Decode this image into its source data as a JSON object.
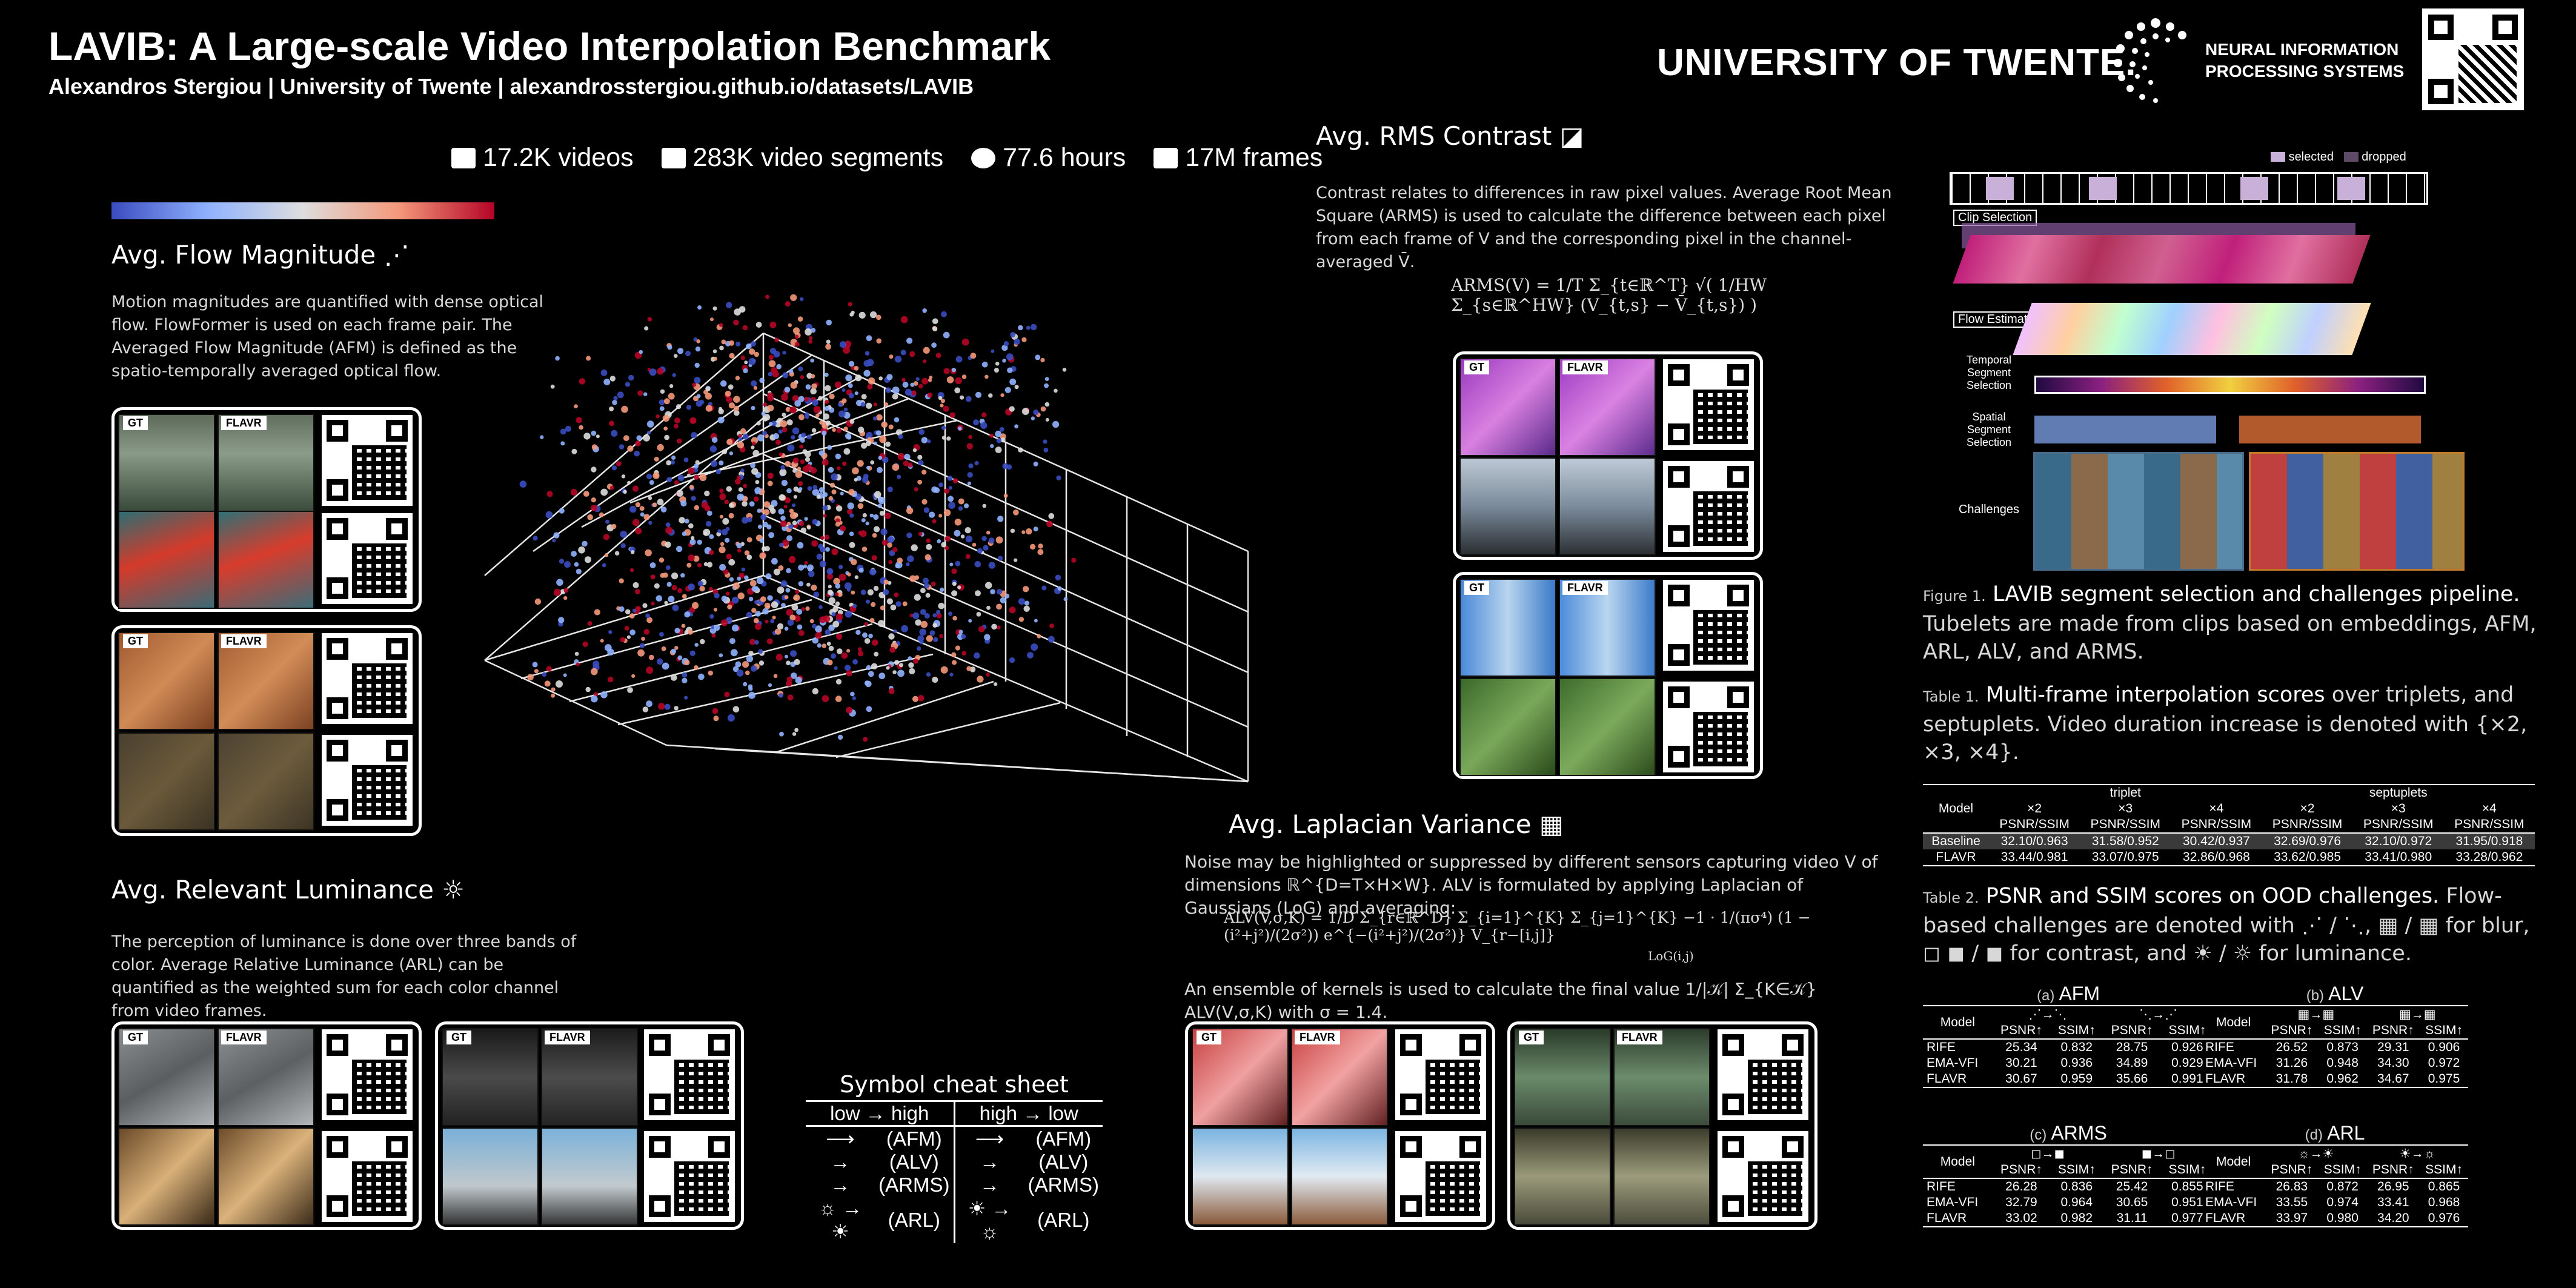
{
  "header": {
    "title": "LAVIB: A Large-scale Video Interpolation Benchmark",
    "authors": "Alexandros Stergiou | University of Twente | alexandrosstergiou.github.io/datasets/LAVIB",
    "logo_ut": "UNIVERSITY OF TWENTE.",
    "logo_neurips_line1": "NEURAL INFORMATION",
    "logo_neurips_line2": "PROCESSING SYSTEMS"
  },
  "stats": {
    "videos": "17.2K videos",
    "segments": "283K video segments",
    "hours": "77.6 hours",
    "frames": "17M frames",
    "videos_icon": "4k-icon",
    "segments_icon": "clapperboard-icon",
    "hours_icon": "stopwatch-icon",
    "frames_icon": "image-icon"
  },
  "colors": {
    "background": "#000000",
    "colorbar": [
      "#3a4cc0",
      "#8fb1fe",
      "#dddddd",
      "#f4987a",
      "#b40426"
    ],
    "pipeline_selected": "#c8b0d8",
    "pipeline_dropped": "#5e4a66"
  },
  "flow": {
    "heading": "Avg. Flow Magnitude",
    "text": "Motion magnitudes are quantified with dense optical flow. FlowFormer is used on each frame pair. The Averaged Flow Magnitude (AFM) is defined as the spatio-temporally averaged optical flow."
  },
  "luminance": {
    "heading": "Avg. Relevant Luminance",
    "text": "The perception of luminance is done over three bands of color. Average Relative Luminance (ARL) can be quantified as the weighted sum for each color channel from video frames."
  },
  "rms": {
    "heading": "Avg. RMS Contrast",
    "text": "Contrast relates to differences in raw pixel values. Average Root Mean Square (ARMS) is used to calculate the difference between each pixel from each frame of V and the corresponding pixel in the channel-averaged V̄.",
    "formula": "ARMS(V) = 1/T Σ_{t∈ℝ^T} √( 1/HW Σ_{s∈ℝ^HW} (V_{t,s} − V̄_{t,s}) )"
  },
  "laplacian": {
    "heading": "Avg. Laplacian Variance",
    "text": "Noise may be highlighted or suppressed by different sensors capturing video V of dimensions ℝ^{D=T×H×W}. ALV is formulated by applying Laplacian of Gaussians (LoG) and averaging:",
    "formula": "ALV(V,σ,K) = 1/D Σ_{r∈ℝ^D} Σ_{i=1}^{K} Σ_{j=1}^{K} −1 · 1/(πσ⁴) (1 − (i²+j²)/(2σ²)) e^{−(i²+j²)/(2σ²)} V_{r−[i,j]}",
    "formula_note": "LoG(i,j)",
    "ensemble": "An ensemble of kernels is used to calculate the final value 1/|𝒦| Σ_{K∈𝒦} ALV(V,σ,K) with σ = 1.4."
  },
  "panel_labels": {
    "gt": "GT",
    "flavr": "FLAVR"
  },
  "cheat_sheet": {
    "title": "Symbol cheat sheet",
    "col1": "low → high",
    "col2": "high → low",
    "rows": [
      {
        "a": "⟶",
        "m1": "(AFM)",
        "b": "⟶",
        "m2": "(AFM)"
      },
      {
        "a": "→",
        "m1": "(ALV)",
        "b": "→",
        "m2": "(ALV)"
      },
      {
        "a": "→",
        "m1": "(ARMS)",
        "b": "→",
        "m2": "(ARMS)"
      },
      {
        "a": "☼ → ☀",
        "m1": "(ARL)",
        "b": "☀ → ☼",
        "m2": "(ARL)"
      }
    ]
  },
  "pipeline": {
    "legend_selected": "selected",
    "legend_dropped": "dropped",
    "clip_selection": "Clip Selection",
    "flow_estimation": "Flow Estimation",
    "temporal": "Temporal Segment Selection",
    "spatial": "Spatial Segment Selection",
    "challenges": "Challenges"
  },
  "figure1": {
    "prefix": "Figure 1.",
    "title": "LAVIB segment selection and challenges pipeline.",
    "text": "Tubelets are made from clips based on embeddings, AFM, ARL, ALV, and ARMS."
  },
  "table1": {
    "prefix": "Table 1.",
    "title": "Multi-frame interpolation scores",
    "text": "over triplets, and septuplets. Video duration increase is denoted with {×2, ×3, ×4}.",
    "group1": "triplet",
    "group2": "septuplets",
    "model_col": "Model",
    "multipliers": [
      "×2",
      "×3",
      "×4",
      "×2",
      "×3",
      "×4"
    ],
    "metric": "PSNR/SSIM",
    "rows": [
      {
        "model": "Baseline",
        "vals": [
          "32.10/0.963",
          "31.58/0.952",
          "30.42/0.937",
          "32.69/0.976",
          "32.10/0.972",
          "31.95/0.918"
        ]
      },
      {
        "model": "FLAVR",
        "vals": [
          "33.44/0.981",
          "33.07/0.975",
          "32.86/0.968",
          "33.62/0.985",
          "33.41/0.980",
          "33.28/0.962"
        ]
      }
    ]
  },
  "table2": {
    "prefix": "Table 2.",
    "title": "PSNR and SSIM scores on OOD challenges.",
    "text1": "Flow-based challenges are denoted with",
    "text2": "for blur,",
    "text3": "for contrast, and",
    "text4": "for luminance.",
    "subtables": [
      {
        "letter": "(a)",
        "name": "AFM",
        "rows": [
          [
            "RIFE",
            "25.34",
            "0.832",
            "28.75",
            "0.926"
          ],
          [
            "EMA-VFI",
            "30.21",
            "0.936",
            "34.89",
            "0.929"
          ],
          [
            "FLAVR",
            "30.67",
            "0.959",
            "35.66",
            "0.991"
          ]
        ]
      },
      {
        "letter": "(b)",
        "name": "ALV",
        "rows": [
          [
            "RIFE",
            "26.52",
            "0.873",
            "29.31",
            "0.906"
          ],
          [
            "EMA-VFI",
            "31.26",
            "0.948",
            "34.30",
            "0.972"
          ],
          [
            "FLAVR",
            "31.78",
            "0.962",
            "34.67",
            "0.975"
          ]
        ]
      },
      {
        "letter": "(c)",
        "name": "ARMS",
        "rows": [
          [
            "RIFE",
            "26.28",
            "0.836",
            "25.42",
            "0.855"
          ],
          [
            "EMA-VFI",
            "32.79",
            "0.964",
            "30.65",
            "0.951"
          ],
          [
            "FLAVR",
            "33.02",
            "0.982",
            "31.11",
            "0.977"
          ]
        ]
      },
      {
        "letter": "(d)",
        "name": "ARL",
        "rows": [
          [
            "RIFE",
            "26.83",
            "0.872",
            "26.95",
            "0.865"
          ],
          [
            "EMA-VFI",
            "33.55",
            "0.974",
            "33.41",
            "0.968"
          ],
          [
            "FLAVR",
            "33.97",
            "0.980",
            "34.20",
            "0.976"
          ]
        ]
      }
    ],
    "model_col": "Model",
    "psnr": "PSNR↑",
    "ssim": "SSIM↑"
  }
}
